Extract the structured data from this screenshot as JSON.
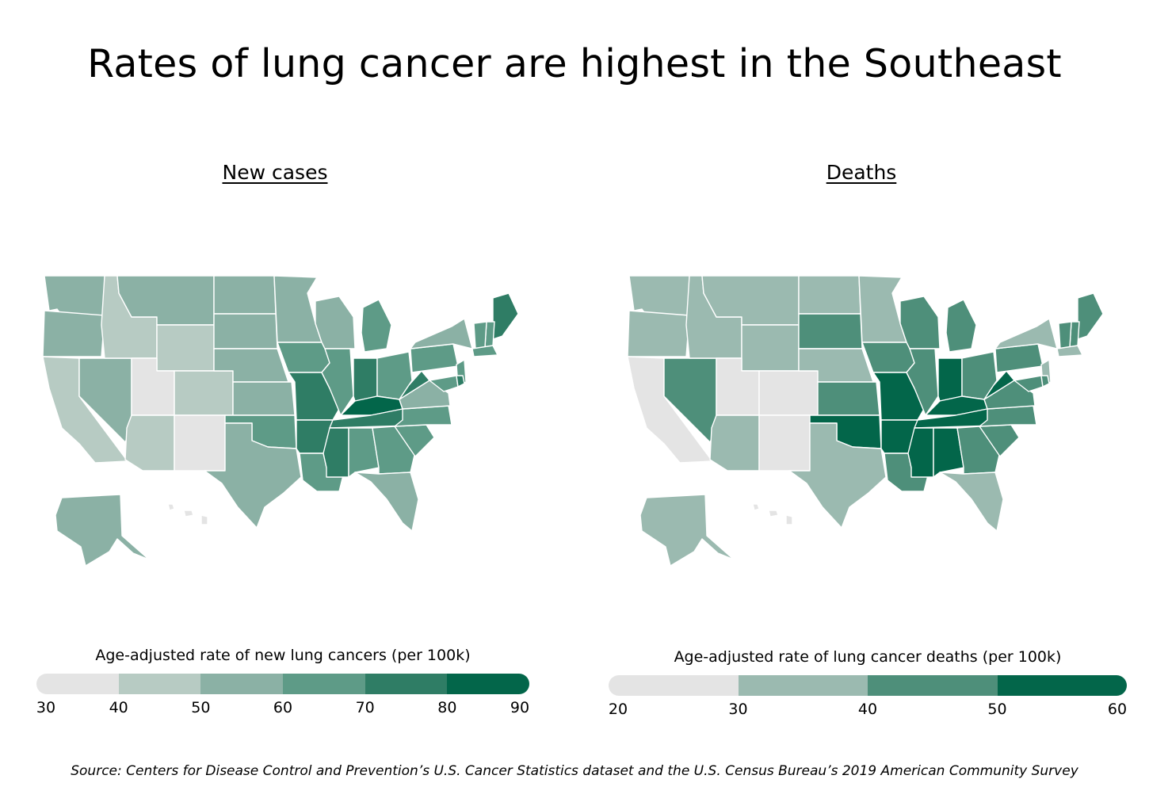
{
  "title": "Rates of lung cancer are highest in the Southeast",
  "source": "Source:  Centers for Disease Control and Prevention’s U.S. Cancer Statistics dataset and the U.S. Census Bureau’s 2019 American Community Survey",
  "chart_data": [
    {
      "type": "choropleth",
      "title": "New cases",
      "legend_title": "Age-adjusted rate of new lung cancers (per 100k)",
      "bins": [
        30,
        40,
        50,
        60,
        70,
        80,
        90
      ],
      "colors": [
        "#e4e4e4",
        "#b7cbc3",
        "#8bb1a5",
        "#5e9b87",
        "#2f7d65",
        "#03664a"
      ],
      "state_bin": {
        "WA": 2,
        "OR": 2,
        "CA": 1,
        "NV": 2,
        "ID": 1,
        "MT": 2,
        "WY": 1,
        "UT": 0,
        "AZ": 1,
        "CO": 1,
        "NM": 0,
        "ND": 2,
        "SD": 2,
        "NE": 2,
        "KS": 2,
        "OK": 3,
        "TX": 2,
        "MN": 2,
        "IA": 3,
        "MO": 4,
        "AR": 4,
        "LA": 3,
        "WI": 2,
        "IL": 3,
        "MI": 3,
        "IN": 4,
        "OH": 3,
        "KY": 5,
        "TN": 4,
        "MS": 4,
        "AL": 3,
        "GA": 3,
        "FL": 2,
        "SC": 3,
        "NC": 3,
        "VA": 2,
        "WV": 4,
        "PA": 3,
        "NY": 2,
        "ME": 4,
        "NH": 3,
        "VT": 3,
        "MA": 3,
        "NJ": 3,
        "MD": 3,
        "DE": 4,
        "AK": 2,
        "HI": 0
      }
    },
    {
      "type": "choropleth",
      "title": "Deaths",
      "legend_title": "Age-adjusted rate of lung cancer deaths (per 100k)",
      "bins": [
        20,
        30,
        40,
        50,
        60
      ],
      "colors": [
        "#e4e4e4",
        "#9bbab0",
        "#4e8f7a",
        "#03664a"
      ],
      "state_bin": {
        "WA": 1,
        "OR": 1,
        "CA": 0,
        "NV": 2,
        "ID": 1,
        "MT": 1,
        "WY": 1,
        "UT": 0,
        "AZ": 1,
        "CO": 0,
        "NM": 0,
        "ND": 1,
        "SD": 2,
        "NE": 1,
        "KS": 2,
        "OK": 3,
        "TX": 1,
        "MN": 1,
        "IA": 2,
        "MO": 3,
        "AR": 3,
        "LA": 2,
        "WI": 2,
        "IL": 2,
        "MI": 2,
        "IN": 3,
        "OH": 2,
        "KY": 3,
        "TN": 3,
        "MS": 3,
        "AL": 3,
        "GA": 2,
        "FL": 1,
        "SC": 2,
        "NC": 2,
        "VA": 2,
        "WV": 3,
        "PA": 2,
        "NY": 1,
        "ME": 2,
        "NH": 2,
        "VT": 2,
        "MA": 1,
        "NJ": 1,
        "MD": 2,
        "DE": 2,
        "AK": 1,
        "HI": 0
      }
    }
  ]
}
